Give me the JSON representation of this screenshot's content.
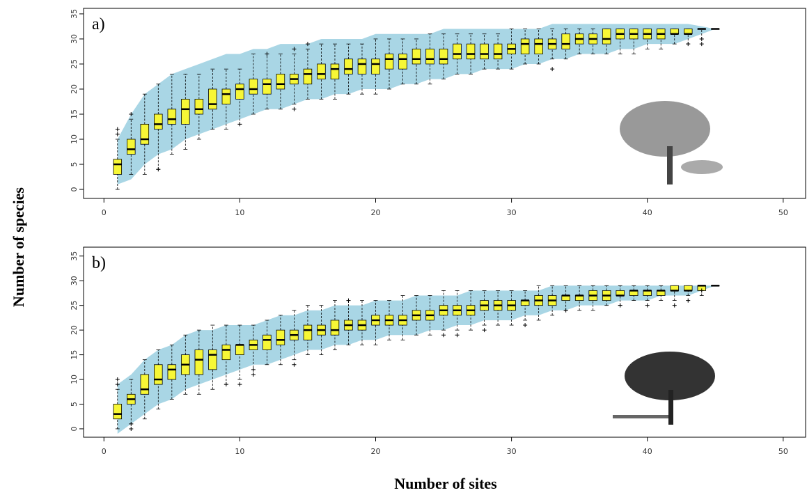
{
  "chart_data": [
    {
      "type": "boxplot",
      "label": "a)",
      "x": [
        1,
        2,
        3,
        4,
        5,
        6,
        7,
        8,
        9,
        10,
        11,
        12,
        13,
        14,
        15,
        16,
        17,
        18,
        19,
        20,
        21,
        22,
        23,
        24,
        25,
        26,
        27,
        28,
        29,
        30,
        31,
        32,
        33,
        34,
        35,
        36,
        37,
        38,
        39,
        40,
        41,
        42,
        43,
        44,
        45
      ],
      "lower_whisker": [
        0,
        3,
        3,
        4,
        7,
        8,
        10,
        12,
        12,
        13,
        15,
        16,
        16,
        17,
        18,
        18,
        18,
        19,
        19,
        19,
        20,
        21,
        21,
        21,
        22,
        23,
        23,
        24,
        24,
        24,
        25,
        25,
        26,
        26,
        27,
        27,
        27,
        27,
        27,
        28,
        28,
        29,
        29,
        30,
        32
      ],
      "q1": [
        3,
        7,
        9,
        12,
        13,
        13,
        15,
        16,
        17,
        18,
        19,
        19,
        20,
        21,
        21,
        22,
        22,
        23,
        23,
        23,
        24,
        24,
        25,
        25,
        25,
        26,
        26,
        26,
        26,
        27,
        27,
        27,
        28,
        28,
        29,
        29,
        29,
        30,
        30,
        30,
        30,
        31,
        31,
        32,
        32
      ],
      "median": [
        5,
        8,
        10,
        13,
        14,
        16,
        16,
        17,
        19,
        20,
        20,
        21,
        21,
        22,
        23,
        23,
        24,
        24,
        25,
        25,
        26,
        26,
        26,
        26,
        26,
        27,
        27,
        27,
        27,
        28,
        29,
        29,
        29,
        29,
        30,
        30,
        30,
        31,
        31,
        31,
        31,
        31,
        31,
        32,
        32
      ],
      "q3": [
        6,
        10,
        13,
        15,
        16,
        18,
        18,
        20,
        20,
        21,
        22,
        22,
        23,
        23,
        24,
        25,
        25,
        26,
        26,
        26,
        27,
        27,
        28,
        28,
        28,
        29,
        29,
        29,
        29,
        29,
        30,
        30,
        30,
        31,
        31,
        31,
        32,
        32,
        32,
        32,
        32,
        32,
        32,
        32,
        32
      ],
      "upper_whisker": [
        10,
        14,
        19,
        21,
        23,
        23,
        23,
        24,
        24,
        24,
        27,
        27,
        27,
        27,
        28,
        29,
        29,
        29,
        29,
        30,
        30,
        30,
        30,
        31,
        31,
        31,
        31,
        31,
        31,
        32,
        32,
        32,
        32,
        32,
        32,
        32,
        32,
        32,
        32,
        32,
        32,
        32,
        32,
        32,
        32
      ],
      "band_upper": [
        10,
        15,
        19,
        21,
        23,
        24,
        25,
        26,
        27,
        27,
        28,
        28,
        29,
        29,
        29,
        30,
        30,
        30,
        30,
        31,
        31,
        31,
        31,
        31,
        32,
        32,
        32,
        32,
        32,
        32,
        32,
        32,
        33,
        33,
        33,
        33,
        33,
        33,
        33,
        33,
        33,
        33,
        33,
        32.5,
        32
      ],
      "band_lower": [
        1,
        2,
        5,
        7,
        8,
        10,
        11,
        12,
        13,
        14,
        15,
        16,
        16,
        17,
        18,
        18,
        19,
        19,
        20,
        20,
        20,
        21,
        21,
        22,
        22,
        23,
        23,
        24,
        24,
        24,
        25,
        25,
        26,
        26,
        27,
        27,
        27,
        28,
        28,
        29,
        29,
        29,
        30,
        31,
        32
      ],
      "outliers_x": [
        1,
        1,
        2,
        4,
        10,
        12,
        14,
        14,
        15,
        33,
        43,
        44,
        44
      ],
      "outliers_y": [
        11,
        12,
        15,
        4,
        13,
        27,
        16,
        28,
        29,
        24,
        29,
        29,
        30
      ],
      "xlim": [
        -1.5,
        51.7
      ],
      "ylim": [
        -1.8,
        36.1
      ],
      "xticks": [
        0,
        10,
        20,
        30,
        40,
        50
      ],
      "yticks": [
        0,
        5,
        10,
        15,
        20,
        25,
        30,
        35
      ],
      "box_color": "#f7f736",
      "band_color": "#a9d6e5"
    },
    {
      "type": "boxplot",
      "label": "b)",
      "x": [
        1,
        2,
        3,
        4,
        5,
        6,
        7,
        8,
        9,
        10,
        11,
        12,
        13,
        14,
        15,
        16,
        17,
        18,
        19,
        20,
        21,
        22,
        23,
        24,
        25,
        26,
        27,
        28,
        29,
        30,
        31,
        32,
        33,
        34,
        35,
        36,
        37,
        38,
        39,
        40,
        41,
        42,
        43,
        44,
        45
      ],
      "lower_whisker": [
        0,
        1,
        2,
        4,
        6,
        7,
        7,
        8,
        9,
        10,
        11,
        13,
        13,
        14,
        15,
        15,
        16,
        17,
        17,
        17,
        18,
        18,
        19,
        19,
        20,
        20,
        20,
        21,
        21,
        21,
        22,
        22,
        23,
        24,
        24,
        24,
        25,
        25,
        26,
        26,
        26,
        26,
        27,
        27,
        29
      ],
      "q1": [
        2,
        5,
        7,
        9,
        10,
        11,
        11,
        12,
        14,
        15,
        16,
        16,
        17,
        18,
        18,
        19,
        19,
        20,
        20,
        21,
        21,
        21,
        22,
        22,
        23,
        23,
        23,
        24,
        24,
        24,
        25,
        25,
        25,
        26,
        26,
        26,
        26,
        27,
        27,
        27,
        27,
        28,
        28,
        28,
        29
      ],
      "median": [
        3,
        6,
        8,
        10,
        12,
        13,
        14,
        15,
        16,
        17,
        17,
        18,
        18,
        19,
        20,
        20,
        20,
        21,
        21,
        22,
        22,
        22,
        23,
        23,
        24,
        24,
        24,
        25,
        25,
        25,
        26,
        26,
        26,
        27,
        27,
        27,
        27,
        27,
        28,
        28,
        28,
        28,
        28,
        29,
        29
      ],
      "q3": [
        5,
        7,
        11,
        13,
        13,
        15,
        16,
        16,
        17,
        17,
        18,
        19,
        20,
        20,
        21,
        21,
        22,
        22,
        22,
        23,
        23,
        23,
        24,
        24,
        25,
        25,
        25,
        26,
        26,
        26,
        26,
        27,
        27,
        27,
        27,
        28,
        28,
        28,
        28,
        28,
        28,
        29,
        29,
        29,
        29
      ],
      "upper_whisker": [
        8,
        10,
        14,
        16,
        17,
        19,
        20,
        21,
        21,
        21,
        21,
        22,
        23,
        24,
        25,
        25,
        26,
        26,
        26,
        26,
        26,
        27,
        27,
        27,
        28,
        28,
        28,
        28,
        28,
        28,
        28,
        29,
        29,
        29,
        29,
        29,
        29,
        29,
        29,
        29,
        29,
        29,
        29,
        29,
        29
      ],
      "band_upper": [
        9,
        11,
        14,
        16,
        17,
        19,
        20,
        20,
        21,
        21,
        21,
        22,
        23,
        23,
        24,
        24,
        25,
        25,
        25,
        26,
        26,
        26,
        27,
        27,
        27,
        27,
        28,
        28,
        28,
        28,
        28,
        28,
        29,
        29,
        29,
        29,
        29,
        29,
        29,
        29,
        29,
        29,
        29,
        29,
        29
      ],
      "band_lower": [
        -1,
        1,
        3,
        5,
        6,
        8,
        9,
        10,
        11,
        12,
        13,
        13,
        14,
        15,
        16,
        16,
        17,
        17,
        18,
        18,
        19,
        19,
        19,
        20,
        20,
        21,
        21,
        22,
        22,
        22,
        23,
        23,
        24,
        24,
        25,
        25,
        25,
        26,
        26,
        26,
        27,
        27,
        27,
        28,
        29
      ],
      "outliers_x": [
        1,
        1,
        2,
        2,
        9,
        10,
        11,
        11,
        14,
        18,
        25,
        26,
        28,
        31,
        34,
        38,
        40,
        42,
        43,
        44
      ],
      "outliers_y": [
        9,
        10,
        0,
        1,
        9,
        9,
        11,
        12,
        13,
        26,
        19,
        19,
        20,
        21,
        24,
        25,
        25,
        25,
        26,
        28
      ],
      "xlim": [
        -1.5,
        51.7
      ],
      "ylim": [
        -1.7,
        36.8
      ],
      "xticks": [
        0,
        10,
        20,
        30,
        40,
        50
      ],
      "yticks": [
        0,
        5,
        10,
        15,
        20,
        25,
        30,
        35
      ],
      "box_color": "#f7f736",
      "band_color": "#a9d6e5"
    }
  ],
  "ylabel": "Number of species",
  "xlabel": "Number of sites"
}
